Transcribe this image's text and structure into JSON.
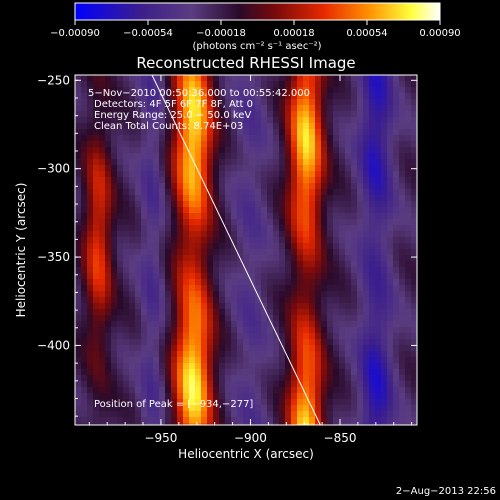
{
  "chart_data": {
    "type": "heatmap",
    "title": "Reconstructed RHESSI Image",
    "xlabel": "Heliocentric X (arcsec)",
    "ylabel": "Heliocentric Y (arcsec)",
    "xlim": [
      -998,
      -807
    ],
    "ylim": [
      -445,
      -247
    ],
    "xticks": [
      -950,
      -900,
      -850
    ],
    "xtick_labels": [
      "−950",
      "−900",
      "−850"
    ],
    "yticks": [
      -250,
      -300,
      -350,
      -400
    ],
    "ytick_labels": [
      "−250",
      "−300",
      "−350",
      "−400"
    ],
    "colorbar": {
      "min": -0.0009,
      "max": 0.0009,
      "ticks": [
        -0.0009,
        -0.00054,
        -0.00018,
        0.00018,
        0.00054,
        0.0009
      ],
      "tick_labels": [
        "−0.00090",
        "−0.00054",
        "−0.00018",
        "0.00018",
        "0.00054",
        "0.00090"
      ],
      "unit_label": "(photons cm⁻² s⁻¹ asec⁻²)",
      "colors": [
        "#0000ff",
        "#3c1e8c",
        "#5a3c82",
        "#2a0a2a",
        "#7a0a0a",
        "#e62800",
        "#ff8c00",
        "#ffff3c",
        "#ffffff"
      ]
    },
    "annotations": [
      "5−Nov−2010 00:50:36.000 to 00:55:42.000",
      "Detectors: 4F 5F 6F 7F 8F, Att 0",
      "Energy Range: 25.0 − 50.0 keV",
      "Clean    Total Counts: 8.74E+03"
    ],
    "peak_label": "Position of Peak = [−934,−277]",
    "peak": {
      "x": -934,
      "y": -277
    },
    "limb_line": {
      "x": [
        -955,
        -861
      ],
      "y": [
        -247,
        -445
      ]
    },
    "stripe_centers_x": [
      -985,
      -932,
      -869
    ]
  },
  "footer": {
    "date": "2−Aug−2013 22:56"
  }
}
